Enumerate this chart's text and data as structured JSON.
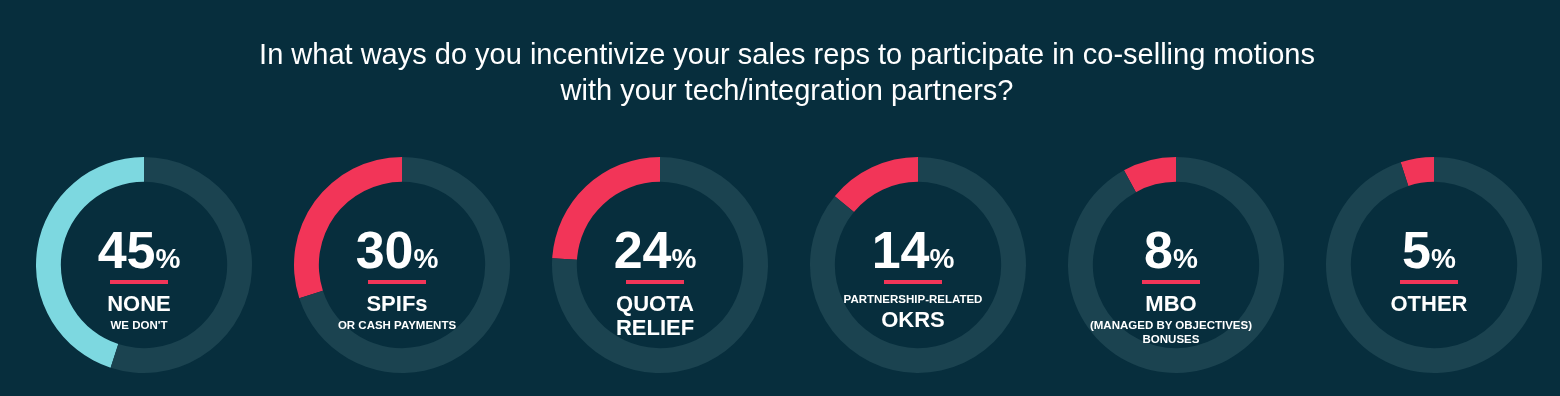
{
  "chart_data": [
    {
      "type": "donut",
      "title": "In what ways do you incentivize your sales reps to participate in co-selling motions with your tech/integration partners?",
      "categories": [
        "NONE",
        null
      ],
      "values": [
        45,
        55
      ],
      "colors": [
        "#7dd8e0",
        "#1b4350"
      ],
      "value_labels": [
        "45%",
        null
      ],
      "subtitle": "WE DON'T"
    },
    {
      "type": "donut",
      "categories": [
        "SPIFs",
        null
      ],
      "values": [
        30,
        70
      ],
      "colors": [
        "#f23558",
        "#1b4350"
      ],
      "value_labels": [
        "30%",
        null
      ],
      "subtitle": "OR CASH PAYMENTS"
    },
    {
      "type": "donut",
      "categories": [
        "QUOTA RELIEF",
        null
      ],
      "values": [
        24,
        76
      ],
      "colors": [
        "#f23558",
        "#1b4350"
      ],
      "value_labels": [
        "24%",
        null
      ]
    },
    {
      "type": "donut",
      "categories": [
        "OKRS",
        null
      ],
      "values": [
        14,
        86
      ],
      "colors": [
        "#f23558",
        "#1b4350"
      ],
      "value_labels": [
        "14%",
        null
      ],
      "annotations": [
        "PARTNERSHIP-RELATED"
      ]
    },
    {
      "type": "donut",
      "categories": [
        "MBO",
        null
      ],
      "values": [
        8,
        92
      ],
      "colors": [
        "#f23558",
        "#1b4350"
      ],
      "value_labels": [
        "8%",
        null
      ],
      "subtitle": "(MANAGED BY OBJECTIVES) BONUSES"
    },
    {
      "type": "donut",
      "categories": [
        "OTHER",
        null
      ],
      "values": [
        5,
        95
      ],
      "colors": [
        "#f23558",
        "#1b4350"
      ],
      "value_labels": [
        "5%",
        null
      ]
    }
  ]
}
